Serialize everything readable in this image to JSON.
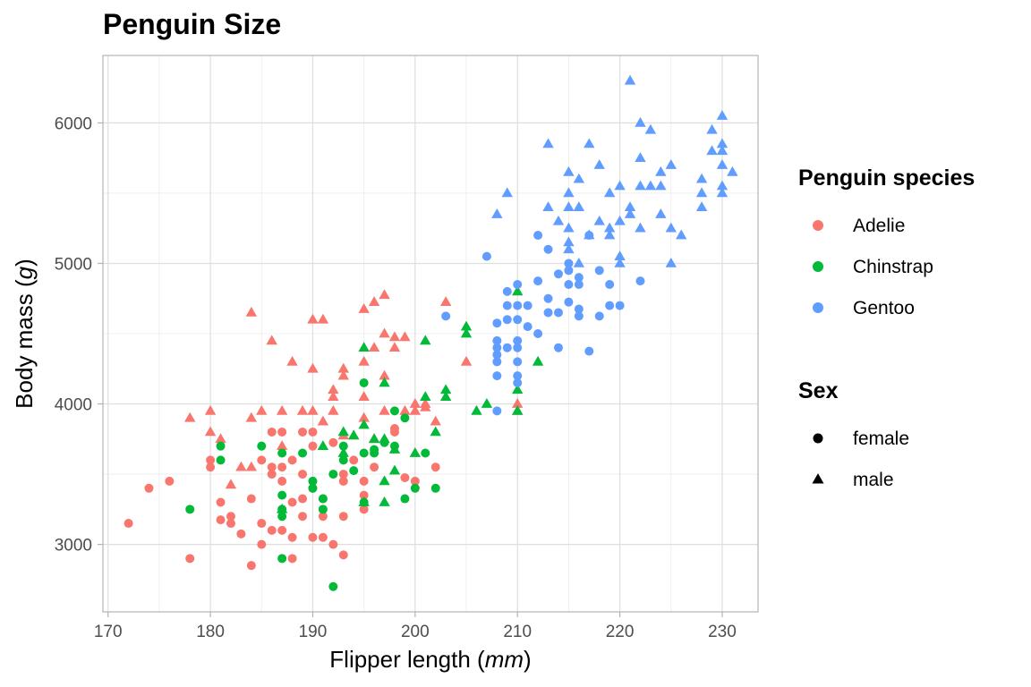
{
  "chart_data": {
    "type": "scatter",
    "title": "Penguin Size",
    "xlabel": "Flipper length",
    "xlabel_unit": "mm",
    "ylabel": "Body mass",
    "ylabel_unit": "g",
    "xlim": [
      169.5,
      233.5
    ],
    "ylim": [
      2520,
      6480
    ],
    "x_ticks": [
      170,
      180,
      190,
      200,
      210,
      220,
      230
    ],
    "y_ticks": [
      3000,
      4000,
      5000,
      6000
    ],
    "grid": true,
    "legend_position": "right",
    "legends": {
      "color": {
        "title": "Penguin species",
        "entries": [
          {
            "label": "Adelie",
            "color": "#F8766D"
          },
          {
            "label": "Chinstrap",
            "color": "#00BA38"
          },
          {
            "label": "Gentoo",
            "color": "#619CFF"
          }
        ]
      },
      "shape": {
        "title": "Sex",
        "entries": [
          {
            "label": "female",
            "shape": "circle"
          },
          {
            "label": "male",
            "shape": "triangle"
          }
        ]
      }
    },
    "series": [
      {
        "name": "Adelie",
        "color": "#F8766D",
        "female": [
          [
            172,
            3150
          ],
          [
            174,
            3400
          ],
          [
            176,
            3450
          ],
          [
            178,
            2900
          ],
          [
            180,
            3550
          ],
          [
            180,
            3600
          ],
          [
            181,
            3300
          ],
          [
            181,
            3175
          ],
          [
            182,
            3200
          ],
          [
            182,
            3150
          ],
          [
            183,
            3075
          ],
          [
            184,
            2850
          ],
          [
            184,
            3325
          ],
          [
            185,
            3000
          ],
          [
            185,
            3150
          ],
          [
            185,
            3600
          ],
          [
            186,
            3100
          ],
          [
            186,
            3550
          ],
          [
            186,
            3500
          ],
          [
            186,
            3800
          ],
          [
            187,
            3100
          ],
          [
            187,
            3550
          ],
          [
            187,
            3450
          ],
          [
            187,
            3800
          ],
          [
            188,
            2900
          ],
          [
            188,
            3300
          ],
          [
            188,
            3050
          ],
          [
            188,
            3600
          ],
          [
            189,
            3200
          ],
          [
            189,
            3325
          ],
          [
            189,
            3500
          ],
          [
            189,
            3800
          ],
          [
            190,
            3050
          ],
          [
            190,
            3400
          ],
          [
            190,
            3700
          ],
          [
            190,
            3800
          ],
          [
            191,
            3050
          ],
          [
            191,
            3325
          ],
          [
            191,
            3200
          ],
          [
            192,
            3000
          ],
          [
            192,
            3725
          ],
          [
            193,
            2925
          ],
          [
            193,
            3200
          ],
          [
            193,
            3450
          ],
          [
            193,
            3500
          ],
          [
            194,
            3600
          ],
          [
            195,
            3250
          ],
          [
            195,
            3350
          ],
          [
            195,
            3450
          ],
          [
            196,
            3550
          ],
          [
            198,
            3800
          ],
          [
            198,
            3825
          ],
          [
            199,
            3475
          ],
          [
            200,
            3450
          ],
          [
            202,
            3550
          ]
        ],
        "male": [
          [
            178,
            3900
          ],
          [
            180,
            3800
          ],
          [
            180,
            3950
          ],
          [
            181,
            3750
          ],
          [
            182,
            3425
          ],
          [
            183,
            3550
          ],
          [
            184,
            3550
          ],
          [
            184,
            3900
          ],
          [
            184,
            4650
          ],
          [
            185,
            3950
          ],
          [
            186,
            4450
          ],
          [
            187,
            3700
          ],
          [
            187,
            3950
          ],
          [
            188,
            4300
          ],
          [
            189,
            3950
          ],
          [
            190,
            3950
          ],
          [
            190,
            4250
          ],
          [
            190,
            4600
          ],
          [
            191,
            3875
          ],
          [
            191,
            4600
          ],
          [
            192,
            3950
          ],
          [
            192,
            4100
          ],
          [
            192,
            4050
          ],
          [
            193,
            3775
          ],
          [
            193,
            4250
          ],
          [
            193,
            4200
          ],
          [
            194,
            3775
          ],
          [
            195,
            3900
          ],
          [
            195,
            4300
          ],
          [
            195,
            4675
          ],
          [
            195,
            4050
          ],
          [
            196,
            3750
          ],
          [
            196,
            4400
          ],
          [
            196,
            4725
          ],
          [
            197,
            4200
          ],
          [
            197,
            3950
          ],
          [
            197,
            4500
          ],
          [
            197,
            4775
          ],
          [
            198,
            4400
          ],
          [
            198,
            4475
          ],
          [
            199,
            4475
          ],
          [
            199,
            3950
          ],
          [
            200,
            3950
          ],
          [
            200,
            4000
          ],
          [
            201,
            4000
          ],
          [
            201,
            3975
          ],
          [
            202,
            3875
          ],
          [
            203,
            4725
          ],
          [
            205,
            4300
          ],
          [
            210,
            3950
          ],
          [
            210,
            4000
          ]
        ]
      },
      {
        "name": "Chinstrap",
        "color": "#00BA38",
        "female": [
          [
            178,
            3250
          ],
          [
            181,
            3700
          ],
          [
            181,
            3600
          ],
          [
            185,
            3700
          ],
          [
            187,
            3650
          ],
          [
            187,
            3350
          ],
          [
            187,
            3250
          ],
          [
            187,
            3200
          ],
          [
            187,
            2900
          ],
          [
            189,
            3650
          ],
          [
            190,
            3450
          ],
          [
            190,
            3400
          ],
          [
            191,
            3325
          ],
          [
            191,
            3250
          ],
          [
            192,
            3500
          ],
          [
            192,
            2700
          ],
          [
            193,
            3700
          ],
          [
            193,
            3600
          ],
          [
            194,
            3525
          ],
          [
            195,
            4150
          ],
          [
            195,
            3650
          ],
          [
            195,
            3300
          ],
          [
            196,
            3650
          ],
          [
            196,
            3675
          ],
          [
            197,
            3725
          ],
          [
            198,
            3700
          ],
          [
            198,
            3950
          ],
          [
            199,
            3900
          ],
          [
            199,
            3325
          ],
          [
            200,
            3400
          ],
          [
            201,
            3650
          ],
          [
            202,
            3400
          ]
        ],
        "male": [
          [
            187,
            3250
          ],
          [
            191,
            3700
          ],
          [
            193,
            3800
          ],
          [
            193,
            3650
          ],
          [
            194,
            3775
          ],
          [
            195,
            3850
          ],
          [
            195,
            3300
          ],
          [
            195,
            4400
          ],
          [
            196,
            3750
          ],
          [
            197,
            3450
          ],
          [
            197,
            3300
          ],
          [
            197,
            4150
          ],
          [
            197,
            3750
          ],
          [
            198,
            3525
          ],
          [
            198,
            3675
          ],
          [
            200,
            3650
          ],
          [
            201,
            4450
          ],
          [
            201,
            4050
          ],
          [
            202,
            3800
          ],
          [
            203,
            4050
          ],
          [
            203,
            4100
          ],
          [
            205,
            4550
          ],
          [
            205,
            4500
          ],
          [
            206,
            3950
          ],
          [
            207,
            4000
          ],
          [
            210,
            4100
          ],
          [
            210,
            3950
          ],
          [
            210,
            4800
          ],
          [
            212,
            4300
          ]
        ]
      },
      {
        "name": "Gentoo",
        "color": "#619CFF",
        "female": [
          [
            203,
            4625
          ],
          [
            207,
            5050
          ],
          [
            208,
            3950
          ],
          [
            208,
            4300
          ],
          [
            208,
            4350
          ],
          [
            208,
            4400
          ],
          [
            208,
            4450
          ],
          [
            208,
            4575
          ],
          [
            208,
            4200
          ],
          [
            209,
            4800
          ],
          [
            209,
            4700
          ],
          [
            209,
            4600
          ],
          [
            209,
            4400
          ],
          [
            210,
            4850
          ],
          [
            210,
            4700
          ],
          [
            210,
            4600
          ],
          [
            210,
            4450
          ],
          [
            210,
            4400
          ],
          [
            210,
            4300
          ],
          [
            210,
            4150
          ],
          [
            210,
            4200
          ],
          [
            211,
            4700
          ],
          [
            211,
            4550
          ],
          [
            212,
            4500
          ],
          [
            212,
            4875
          ],
          [
            212,
            5200
          ],
          [
            213,
            4750
          ],
          [
            213,
            5100
          ],
          [
            213,
            4650
          ],
          [
            214,
            4925
          ],
          [
            214,
            4650
          ],
          [
            214,
            4400
          ],
          [
            215,
            4850
          ],
          [
            215,
            4725
          ],
          [
            215,
            4950
          ],
          [
            215,
            5000
          ],
          [
            216,
            4900
          ],
          [
            216,
            4850
          ],
          [
            216,
            4625
          ],
          [
            216,
            4675
          ],
          [
            217,
            4375
          ],
          [
            217,
            5200
          ],
          [
            218,
            4950
          ],
          [
            218,
            4625
          ],
          [
            219,
            4700
          ],
          [
            219,
            4850
          ],
          [
            220,
            4700
          ],
          [
            222,
            4875
          ]
        ],
        "male": [
          [
            208,
            5350
          ],
          [
            209,
            5500
          ],
          [
            213,
            5400
          ],
          [
            213,
            5850
          ],
          [
            214,
            5300
          ],
          [
            215,
            5650
          ],
          [
            215,
            5500
          ],
          [
            215,
            5400
          ],
          [
            215,
            5250
          ],
          [
            215,
            5150
          ],
          [
            215,
            5100
          ],
          [
            216,
            5600
          ],
          [
            216,
            5400
          ],
          [
            216,
            5000
          ],
          [
            217,
            5200
          ],
          [
            217,
            5850
          ],
          [
            218,
            5300
          ],
          [
            218,
            5700
          ],
          [
            219,
            5250
          ],
          [
            219,
            5500
          ],
          [
            219,
            5200
          ],
          [
            220,
            5550
          ],
          [
            220,
            5300
          ],
          [
            220,
            5000
          ],
          [
            220,
            5050
          ],
          [
            221,
            5350
          ],
          [
            221,
            5400
          ],
          [
            221,
            6300
          ],
          [
            222,
            5750
          ],
          [
            222,
            6000
          ],
          [
            222,
            5550
          ],
          [
            222,
            5250
          ],
          [
            223,
            5550
          ],
          [
            223,
            5950
          ],
          [
            224,
            5550
          ],
          [
            224,
            5650
          ],
          [
            224,
            5350
          ],
          [
            225,
            5250
          ],
          [
            225,
            5700
          ],
          [
            225,
            5000
          ],
          [
            226,
            5200
          ],
          [
            228,
            5600
          ],
          [
            228,
            5500
          ],
          [
            228,
            5400
          ],
          [
            229,
            5800
          ],
          [
            229,
            5950
          ],
          [
            230,
            5500
          ],
          [
            230,
            5550
          ],
          [
            230,
            5700
          ],
          [
            230,
            5800
          ],
          [
            230,
            5850
          ],
          [
            230,
            6050
          ],
          [
            231,
            5650
          ]
        ]
      }
    ]
  }
}
